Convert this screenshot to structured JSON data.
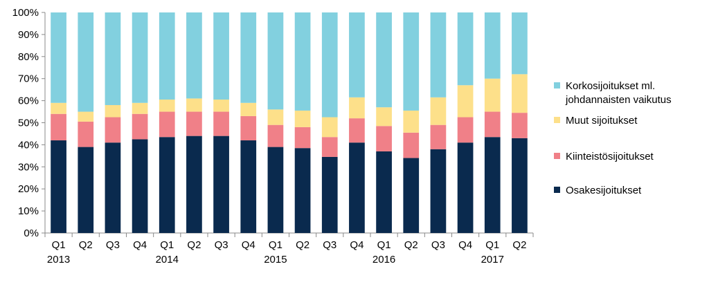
{
  "chart_data": {
    "type": "bar",
    "stacked": true,
    "percent": true,
    "categories": [
      "Q1",
      "Q2",
      "Q3",
      "Q4",
      "Q1",
      "Q2",
      "Q3",
      "Q4",
      "Q1",
      "Q2",
      "Q3",
      "Q4",
      "Q1",
      "Q2",
      "Q3",
      "Q4",
      "Q1",
      "Q2"
    ],
    "year_labels": [
      {
        "category_index": 0,
        "label": "2013"
      },
      {
        "category_index": 4,
        "label": "2014"
      },
      {
        "category_index": 8,
        "label": "2015"
      },
      {
        "category_index": 12,
        "label": "2016"
      },
      {
        "category_index": 16,
        "label": "2017"
      }
    ],
    "ylim": [
      0,
      100
    ],
    "yticks": [
      "0%",
      "10%",
      "20%",
      "30%",
      "40%",
      "50%",
      "60%",
      "70%",
      "80%",
      "90%",
      "100%"
    ],
    "title": "",
    "xlabel": "",
    "ylabel": "",
    "grid": false,
    "legend_position": "right",
    "series": [
      {
        "name": "Osakesijoitukset",
        "color": "#0a2a4e",
        "values": [
          42,
          39,
          41,
          42.5,
          43.5,
          44,
          44,
          42,
          39,
          38.5,
          34.5,
          41,
          37,
          34,
          38,
          41,
          43.5,
          43
        ]
      },
      {
        "name": "Kiinteistösijoitukset",
        "color": "#f08088",
        "values": [
          12,
          11.5,
          11.5,
          11.5,
          11.5,
          11,
          11,
          11,
          10,
          9.5,
          9,
          11,
          11.5,
          11.5,
          11,
          11.5,
          11.5,
          11.5
        ]
      },
      {
        "name": "Muut sijoitukset",
        "color": "#fde08a",
        "values": [
          5,
          4.5,
          5.5,
          5,
          5.5,
          6,
          5.5,
          6,
          7,
          7.5,
          9,
          9.5,
          8.5,
          10,
          12.5,
          14.5,
          15,
          17.5
        ]
      },
      {
        "name": "Korkosijoitukset ml. johdannaisten vaikutus",
        "color": "#82d0df",
        "values": [
          41,
          45,
          42,
          41,
          39.5,
          39,
          39.5,
          41,
          44,
          44.5,
          47.5,
          38.5,
          43,
          44.5,
          38.5,
          33,
          30,
          28
        ]
      }
    ],
    "legend_order": [
      3,
      2,
      1,
      0
    ],
    "legend_lines": [
      [
        "Korkosijoitukset ml.",
        "johdannaisten vaikutus"
      ],
      [
        "Muut sijoitukset"
      ],
      [
        "Kiinteistösijoitukset"
      ],
      [
        "Osakesijoitukset"
      ]
    ]
  }
}
